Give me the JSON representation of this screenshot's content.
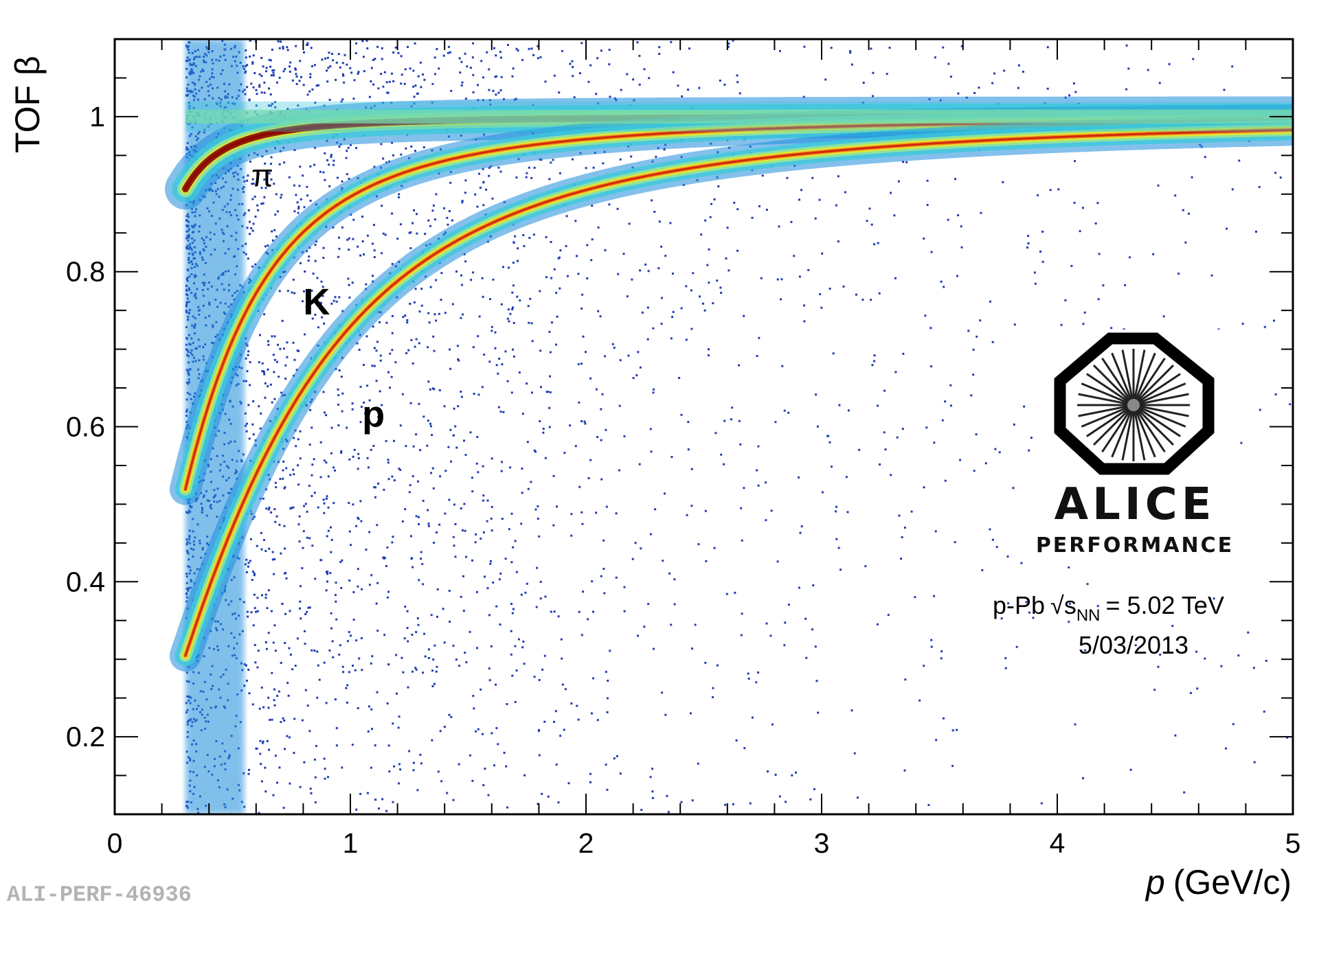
{
  "chart_data": {
    "type": "heatmap",
    "xlabel": "p (GeV/c)",
    "xlabel_var": "p",
    "xlabel_unit": "(GeV/c)",
    "ylabel": "TOF β",
    "xlim": [
      0,
      5
    ],
    "ylim": [
      0.1,
      1.1
    ],
    "x_ticks": [
      0,
      1,
      2,
      3,
      4,
      5
    ],
    "x_tick_labels": [
      "0",
      "1",
      "2",
      "3",
      "4",
      "5"
    ],
    "y_ticks": [
      0.2,
      0.4,
      0.6,
      0.8,
      1.0
    ],
    "y_tick_labels": [
      "0.2",
      "0.4",
      "0.6",
      "0.8",
      "1"
    ],
    "x_minor_step": 0.2,
    "y_minor_step": 0.05,
    "grid": false,
    "min_momentum_cutoff": 0.3,
    "bands": [
      {
        "label": "π",
        "mass_gev": 0.1396,
        "label_p": 0.58,
        "label_beta": 0.91
      },
      {
        "label": "K",
        "mass_gev": 0.4937,
        "label_p": 0.8,
        "label_beta": 0.745
      },
      {
        "label": "p",
        "mass_gev": 0.9383,
        "label_p": 1.05,
        "label_beta": 0.6
      }
    ],
    "colormap": [
      "#00008b",
      "#1e3cb4",
      "#1e8cdc",
      "#3cc8dc",
      "#96e696",
      "#e6e632",
      "#f08c1e",
      "#d2280a",
      "#780000"
    ]
  },
  "annotations": {
    "collision_system": "p-Pb",
    "sqrt_symbol": "√",
    "s_label": "s",
    "s_subscript": "NN",
    "energy": "= 5.02 TeV",
    "date": "5/03/2013",
    "reference": "ALI-PERF-46936"
  },
  "logo": {
    "name": "ALICE",
    "subtitle": "PERFORMANCE"
  }
}
